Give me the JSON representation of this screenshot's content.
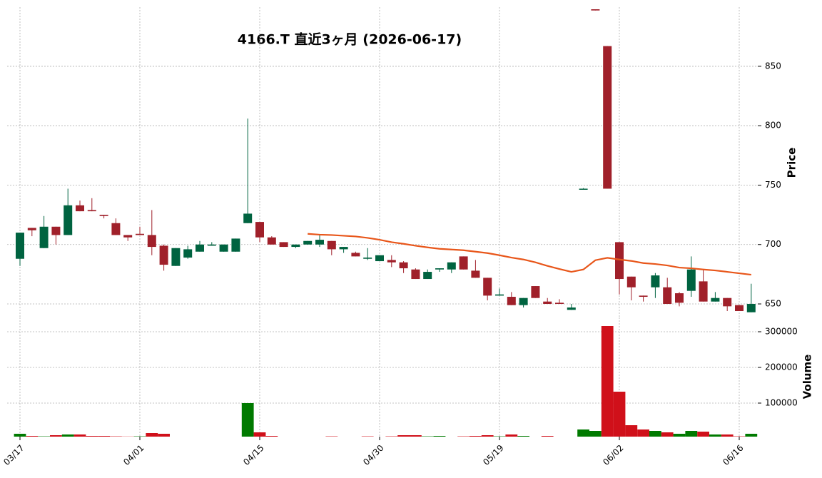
{
  "chart_data": {
    "type": "candlestick",
    "title": "4166.T  直近3ヶ月  (2026-06-17)",
    "ylabel": "Price",
    "grid": true,
    "categories": [
      "03/17",
      null,
      null,
      null,
      null,
      null,
      null,
      null,
      null,
      null,
      "04/01",
      null,
      null,
      null,
      null,
      null,
      null,
      null,
      null,
      null,
      "04/15",
      null,
      null,
      null,
      null,
      null,
      null,
      null,
      null,
      null,
      "04/30",
      null,
      null,
      null,
      null,
      null,
      null,
      null,
      null,
      null,
      "05/19",
      null,
      null,
      null,
      null,
      null,
      null,
      null,
      null,
      null,
      "06/02",
      null,
      null,
      null,
      null,
      null,
      null,
      null,
      null,
      null,
      "06/16",
      null
    ],
    "open": [
      688,
      714,
      697,
      715,
      708,
      733,
      729,
      725,
      718,
      708,
      709,
      708,
      699,
      682,
      689,
      694,
      699,
      694,
      694,
      718,
      719,
      706,
      702,
      698,
      700,
      700,
      703,
      696,
      693,
      688,
      686,
      687,
      685,
      679,
      671,
      679,
      679,
      690,
      678,
      672,
      657,
      656,
      649,
      665,
      652,
      651,
      645,
      747,
      898,
      867,
      702,
      673,
      657,
      664,
      664,
      659,
      661,
      669,
      652,
      655,
      649,
      643
    ],
    "high": [
      710,
      714,
      724,
      715,
      747,
      737,
      739,
      725,
      722,
      708,
      715,
      729,
      700,
      697,
      699,
      703,
      702,
      700,
      705,
      806,
      719,
      707,
      702,
      700,
      703,
      708,
      703,
      698,
      694,
      697,
      691,
      691,
      686,
      680,
      679,
      680,
      685,
      690,
      687,
      672,
      663,
      660,
      655,
      665,
      655,
      654,
      650,
      747.5,
      898,
      867,
      702,
      673,
      657,
      676,
      672,
      660,
      690,
      679,
      660,
      655,
      649,
      667
    ],
    "low": [
      682,
      707,
      697,
      700,
      708,
      728,
      728,
      722,
      708,
      703,
      708,
      691,
      678,
      682,
      688,
      694,
      699,
      694,
      694,
      718,
      702,
      700,
      698,
      697,
      700,
      698,
      691,
      693,
      690,
      687,
      686,
      681,
      676,
      671,
      671,
      677,
      676,
      679,
      672,
      653,
      657,
      649,
      647,
      655,
      650,
      650,
      645,
      747,
      897,
      747,
      658,
      653,
      652,
      655,
      650,
      648,
      656,
      652,
      652,
      644,
      644,
      643
    ],
    "close": [
      710,
      712,
      715,
      708,
      733,
      728,
      728,
      724,
      708,
      706,
      708,
      698,
      683,
      697,
      696,
      700,
      700,
      700,
      705,
      726,
      706,
      700,
      698,
      700,
      703,
      704,
      696,
      698,
      690,
      689,
      691,
      685,
      680,
      671,
      677,
      680,
      685,
      679,
      672,
      657,
      658,
      649,
      655,
      655,
      650,
      650,
      647,
      747,
      897,
      747,
      671,
      664,
      656,
      674,
      650,
      651,
      679,
      652,
      655,
      648,
      644,
      650
    ],
    "up_color": "#006340",
    "down_color": "#a0202a",
    "ylim": [
      638.6,
      899.8
    ],
    "yticks": [
      650,
      700,
      750,
      800,
      850
    ],
    "moving_average": {
      "color": "#e8561a",
      "values": [
        null,
        null,
        null,
        null,
        null,
        null,
        null,
        null,
        null,
        null,
        null,
        null,
        null,
        null,
        null,
        null,
        null,
        null,
        null,
        null,
        null,
        null,
        null,
        null,
        709,
        708.3,
        708,
        707.4,
        706.8,
        705.6,
        704,
        702,
        700.6,
        699,
        697.6,
        696.4,
        695.8,
        695.2,
        694,
        692.8,
        691,
        689,
        687.4,
        685,
        682,
        679.4,
        677,
        679,
        686.8,
        688.8,
        687.4,
        686.2,
        684.4,
        683.6,
        682.4,
        680.6,
        680,
        679,
        678.2,
        677,
        675.8,
        674.6
      ]
    },
    "volume": {
      "label": "Volume",
      "ylim": [
        6000,
        320000
      ],
      "yticks": [
        100000,
        200000,
        300000
      ],
      "values": [
        14000,
        8000,
        7000,
        10000,
        12000,
        12000,
        8000,
        8000,
        7000,
        6500,
        7000,
        16000,
        14000,
        6000,
        6000,
        6000,
        6000,
        6000,
        6000,
        100000,
        18000,
        8000,
        6000,
        6000,
        6000,
        6000,
        7000,
        6000,
        6000,
        7000,
        6000,
        7000,
        10000,
        10000,
        7000,
        8000,
        6000,
        7000,
        8000,
        10000,
        7000,
        12000,
        8000,
        6000,
        8000,
        6000,
        6000,
        26000,
        22000,
        316000,
        132000,
        38000,
        26000,
        22000,
        18000,
        14000,
        22000,
        20000,
        12000,
        12000,
        7000,
        14000
      ],
      "colors": [
        "#007a00",
        "#d0101a",
        "#007a00",
        "#d0101a",
        "#007a00",
        "#d0101a",
        "#d0101a",
        "#d0101a",
        "#d0101a",
        "#d0101a",
        "#007a00",
        "#d0101a",
        "#d0101a",
        "#007a00",
        "#007a00",
        "#007a00",
        "#007a00",
        "#007a00",
        "#007a00",
        "#007a00",
        "#d0101a",
        "#d0101a",
        "#d0101a",
        "#007a00",
        "#007a00",
        "#007a00",
        "#d0101a",
        "#007a00",
        "#d0101a",
        "#d0101a",
        "#007a00",
        "#d0101a",
        "#d0101a",
        "#d0101a",
        "#007a00",
        "#007a00",
        "#007a00",
        "#d0101a",
        "#d0101a",
        "#d0101a",
        "#007a00",
        "#d0101a",
        "#007a00",
        "#d0101a",
        "#d0101a",
        "#d0101a",
        "#007a00",
        "#007a00",
        "#007a00",
        "#d0101a",
        "#d0101a",
        "#d0101a",
        "#d0101a",
        "#007a00",
        "#d0101a",
        "#007a00",
        "#007a00",
        "#d0101a",
        "#007a00",
        "#d0101a",
        "#d0101a",
        "#007a00"
      ]
    }
  }
}
